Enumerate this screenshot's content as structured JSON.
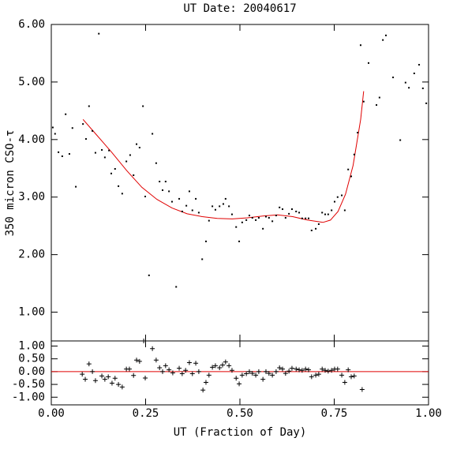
{
  "chart_data": [
    {
      "type": "scatter",
      "title": "UT Date: 20040617",
      "ylabel": "350 micron CSO-τ",
      "xlim": [
        0,
        1
      ],
      "ylim": [
        0.5,
        6.0
      ],
      "yticks": [
        {
          "value": 1,
          "label": "1.00"
        },
        {
          "value": 2,
          "label": "2.00"
        },
        {
          "value": 3,
          "label": "3.00"
        },
        {
          "value": 4,
          "label": "4.00"
        },
        {
          "value": 5,
          "label": "5.00"
        },
        {
          "value": 6,
          "label": "6.00"
        }
      ],
      "points": {
        "color": "#000000",
        "x": [
          0.004,
          0.01,
          0.019,
          0.029,
          0.038,
          0.048,
          0.056,
          0.065,
          0.084,
          0.092,
          0.1,
          0.109,
          0.117,
          0.126,
          0.134,
          0.142,
          0.153,
          0.159,
          0.169,
          0.178,
          0.188,
          0.199,
          0.209,
          0.218,
          0.226,
          0.234,
          0.243,
          0.249,
          0.259,
          0.268,
          0.278,
          0.287,
          0.295,
          0.303,
          0.312,
          0.32,
          0.331,
          0.339,
          0.347,
          0.358,
          0.366,
          0.374,
          0.383,
          0.391,
          0.4,
          0.41,
          0.418,
          0.427,
          0.435,
          0.446,
          0.456,
          0.462,
          0.471,
          0.479,
          0.49,
          0.498,
          0.506,
          0.517,
          0.525,
          0.533,
          0.542,
          0.55,
          0.561,
          0.569,
          0.577,
          0.586,
          0.596,
          0.605,
          0.613,
          0.621,
          0.63,
          0.638,
          0.649,
          0.657,
          0.665,
          0.674,
          0.682,
          0.69,
          0.701,
          0.709,
          0.718,
          0.726,
          0.734,
          0.743,
          0.751,
          0.759,
          0.77,
          0.778,
          0.787,
          0.795,
          0.803,
          0.812,
          0.82,
          0.828,
          0.841,
          0.862,
          0.87,
          0.879,
          0.887,
          0.906,
          0.925,
          0.939,
          0.948,
          0.962,
          0.975,
          0.985,
          0.994
        ],
        "y": [
          4.21,
          4.1,
          3.78,
          3.71,
          4.44,
          3.75,
          4.2,
          3.18,
          4.27,
          4.01,
          4.58,
          4.15,
          3.77,
          5.84,
          3.82,
          3.69,
          3.81,
          3.41,
          3.49,
          3.19,
          3.06,
          3.62,
          3.73,
          3.38,
          3.92,
          3.86,
          4.58,
          3.01,
          1.64,
          4.1,
          3.59,
          3.27,
          3.12,
          3.27,
          3.1,
          2.92,
          1.44,
          2.97,
          2.75,
          2.85,
          3.1,
          2.77,
          2.97,
          2.73,
          1.92,
          2.23,
          2.59,
          2.84,
          2.78,
          2.84,
          2.88,
          2.97,
          2.84,
          2.7,
          2.48,
          2.23,
          2.56,
          2.6,
          2.68,
          2.64,
          2.6,
          2.64,
          2.45,
          2.66,
          2.64,
          2.58,
          2.68,
          2.82,
          2.79,
          2.64,
          2.71,
          2.79,
          2.75,
          2.73,
          2.63,
          2.63,
          2.63,
          2.42,
          2.45,
          2.53,
          2.73,
          2.7,
          2.7,
          2.77,
          2.92,
          3.0,
          3.03,
          2.77,
          3.48,
          3.36,
          3.74,
          4.12,
          5.64,
          4.66,
          5.33,
          4.6,
          4.73,
          5.73,
          5.81,
          5.08,
          3.99,
          4.99,
          4.9,
          5.15,
          5.3,
          4.89,
          4.63
        ]
      },
      "fit": {
        "color": "#e00000",
        "x": [
          0.084,
          0.12,
          0.16,
          0.2,
          0.24,
          0.28,
          0.32,
          0.36,
          0.4,
          0.44,
          0.48,
          0.52,
          0.56,
          0.6,
          0.64,
          0.68,
          0.72,
          0.74,
          0.76,
          0.78,
          0.8,
          0.81,
          0.82,
          0.828
        ],
        "y": [
          4.35,
          4.08,
          3.78,
          3.46,
          3.17,
          2.96,
          2.81,
          2.71,
          2.66,
          2.63,
          2.62,
          2.64,
          2.67,
          2.69,
          2.66,
          2.6,
          2.56,
          2.6,
          2.75,
          3.05,
          3.55,
          3.95,
          4.35,
          4.84
        ]
      }
    },
    {
      "type": "residual",
      "xlabel": "UT (Fraction of Day)",
      "xlim": [
        0,
        1
      ],
      "ylim": [
        -1.3,
        1.2
      ],
      "xticks": [
        {
          "value": 0,
          "label": "0.00"
        },
        {
          "value": 0.25,
          "label": "0.25"
        },
        {
          "value": 0.5,
          "label": "0.50"
        },
        {
          "value": 0.75,
          "label": "0.75"
        },
        {
          "value": 1,
          "label": "1.00"
        }
      ],
      "yticks": [
        {
          "value": -1,
          "label": "-1.00"
        },
        {
          "value": -0.5,
          "label": "-0.50"
        },
        {
          "value": 0,
          "label": "0.00"
        },
        {
          "value": 0.5,
          "label": "0.50"
        },
        {
          "value": 1,
          "label": "1.00"
        }
      ],
      "zero_line": {
        "value": 0,
        "color": "#e00000"
      },
      "points": {
        "color": "#000000",
        "x": [
          0.082,
          0.09,
          0.1,
          0.109,
          0.117,
          0.134,
          0.142,
          0.151,
          0.161,
          0.169,
          0.178,
          0.188,
          0.199,
          0.207,
          0.218,
          0.226,
          0.234,
          0.245,
          0.249,
          0.268,
          0.278,
          0.287,
          0.295,
          0.303,
          0.312,
          0.322,
          0.339,
          0.347,
          0.356,
          0.366,
          0.374,
          0.383,
          0.391,
          0.402,
          0.41,
          0.418,
          0.427,
          0.435,
          0.446,
          0.454,
          0.462,
          0.471,
          0.479,
          0.49,
          0.498,
          0.506,
          0.517,
          0.525,
          0.533,
          0.542,
          0.55,
          0.561,
          0.569,
          0.577,
          0.586,
          0.596,
          0.605,
          0.613,
          0.621,
          0.63,
          0.638,
          0.649,
          0.657,
          0.665,
          0.674,
          0.682,
          0.69,
          0.701,
          0.709,
          0.718,
          0.726,
          0.734,
          0.743,
          0.751,
          0.759,
          0.77,
          0.778,
          0.787,
          0.795,
          0.803,
          0.824
        ],
        "y": [
          -0.1,
          -0.3,
          0.3,
          0,
          -0.35,
          -0.17,
          -0.3,
          -0.2,
          -0.45,
          -0.26,
          -0.5,
          -0.6,
          0.1,
          0.1,
          -0.15,
          0.45,
          0.4,
          1.2,
          -0.25,
          0.9,
          0.45,
          0.15,
          0,
          0.23,
          0.07,
          -0.05,
          0.13,
          -0.08,
          0.05,
          0.35,
          -0.08,
          0.33,
          0,
          -0.72,
          -0.42,
          -0.14,
          0.17,
          0.23,
          0.15,
          0.26,
          0.38,
          0.23,
          0.05,
          -0.26,
          -0.48,
          -0.14,
          -0.08,
          0,
          -0.07,
          -0.14,
          0,
          -0.3,
          0,
          -0.07,
          -0.14,
          0,
          0.15,
          0.1,
          -0.07,
          0.02,
          0.13,
          0.1,
          0.07,
          0.05,
          0.1,
          0.07,
          -0.2,
          -0.14,
          -0.1,
          0.1,
          0.05,
          0.02,
          0.05,
          0.1,
          0.1,
          -0.14,
          -0.42,
          0.07,
          -0.2,
          -0.17,
          -0.7
        ]
      }
    }
  ]
}
